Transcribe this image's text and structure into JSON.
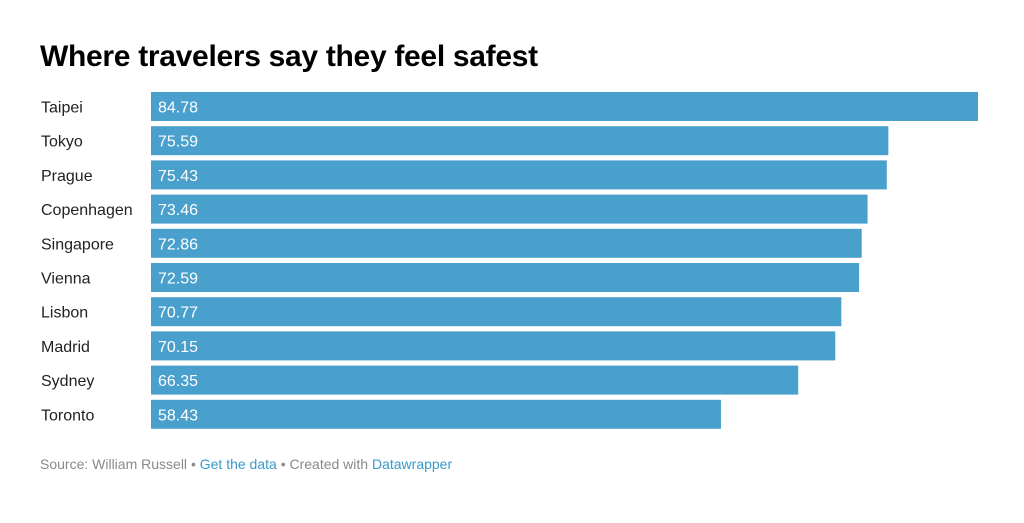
{
  "chart_data": {
    "type": "bar",
    "orientation": "horizontal",
    "title": "Where travelers say they feel safest",
    "categories": [
      "Taipei",
      "Tokyo",
      "Prague",
      "Copenhagen",
      "Singapore",
      "Vienna",
      "Lisbon",
      "Madrid",
      "Sydney",
      "Toronto"
    ],
    "values": [
      84.78,
      75.59,
      75.43,
      73.46,
      72.86,
      72.59,
      70.77,
      70.15,
      66.35,
      58.43
    ],
    "value_labels": [
      "84.78",
      "75.59",
      "75.43",
      "73.46",
      "72.86",
      "72.59",
      "70.77",
      "70.15",
      "66.35",
      "58.43"
    ],
    "xlim": [
      0,
      84.78
    ],
    "bar_color": "#4aa0cc",
    "grid": false,
    "legend": "none"
  },
  "footer": {
    "source_label": "Source: William Russell",
    "separator": "•",
    "get_data_label": "Get the data",
    "created_label": "Created with",
    "datawrapper_label": "Datawrapper"
  },
  "colors": {
    "link": "#3a9ac9",
    "footer_text": "#8a8a8a"
  }
}
